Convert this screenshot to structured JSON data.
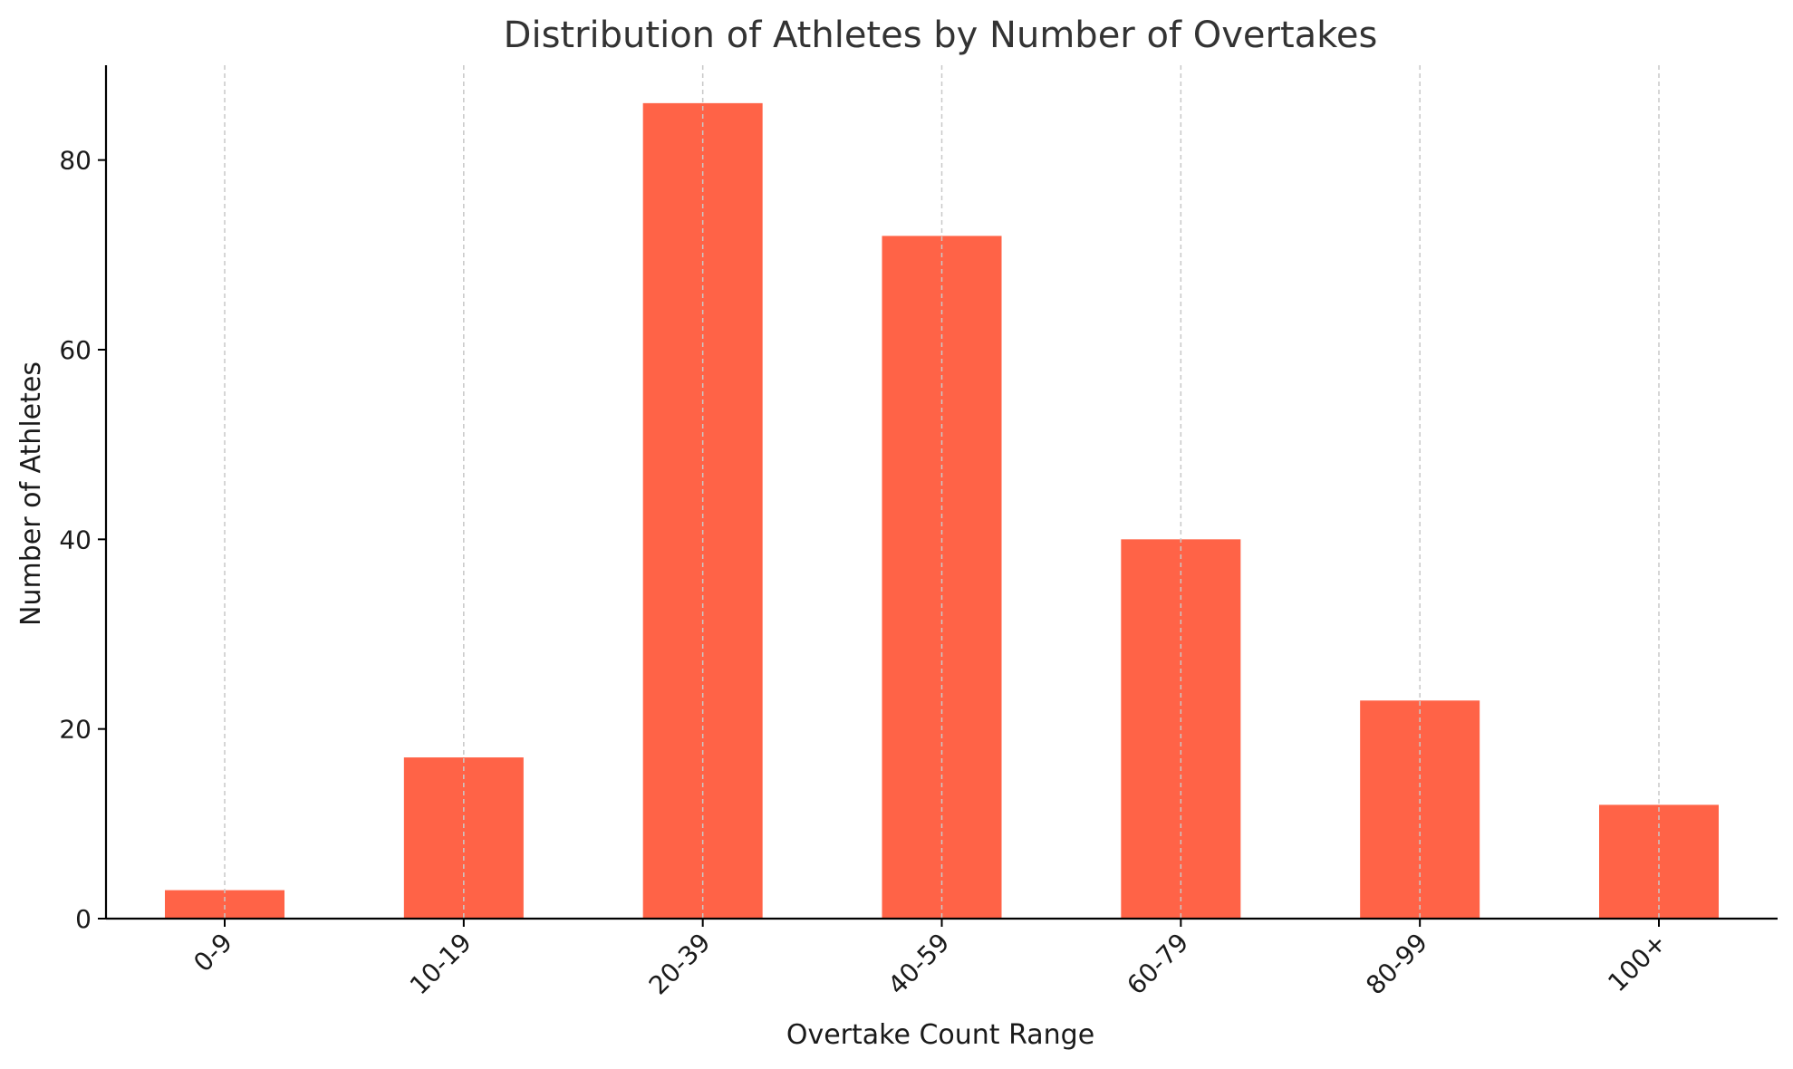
{
  "chart_data": {
    "type": "bar",
    "title": "Distribution of Athletes by Number of Overtakes",
    "xlabel": "Overtake Count Range",
    "ylabel": "Number of Athletes",
    "categories": [
      "0-9",
      "10-19",
      "20-39",
      "40-59",
      "60-79",
      "80-99",
      "100+"
    ],
    "values": [
      3,
      17,
      86,
      72,
      40,
      23,
      12
    ],
    "ylim": [
      0,
      90
    ],
    "yticks": [
      0,
      20,
      40,
      60,
      80
    ],
    "grid": "vertical dashed lines at categories",
    "bar_color": "#ff6347",
    "legend": "none"
  }
}
